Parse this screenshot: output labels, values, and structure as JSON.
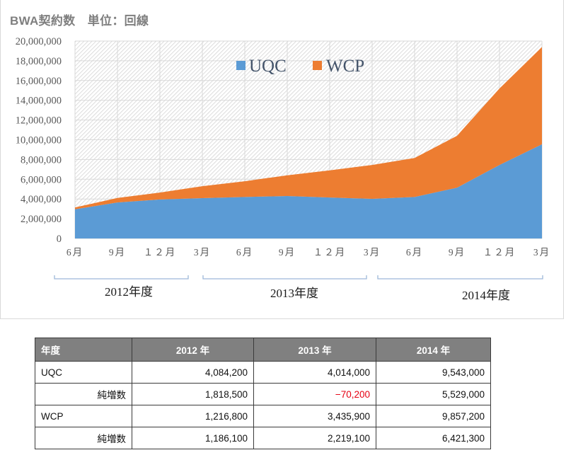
{
  "chart_title": "BWA契約数　単位：回線",
  "colors": {
    "uqc": "#5b9bd5",
    "wcp": "#ed7d31",
    "negative": "#e60012",
    "header_bg": "#808080"
  },
  "legend": [
    {
      "name": "UQC",
      "color": "#5b9bd5"
    },
    {
      "name": "WCP",
      "color": "#ed7d31"
    }
  ],
  "y_ticks": [
    "0",
    "2,000,000",
    "4,000,000",
    "6,000,000",
    "8,000,000",
    "10,000,000",
    "12,000,000",
    "14,000,000",
    "16,000,000",
    "18,000,000",
    "20,000,000"
  ],
  "x_ticks": [
    "6月",
    "9月",
    "１２月",
    "3月",
    "6月",
    "9月",
    "１２月",
    "3月",
    "6月",
    "9月",
    "１２月",
    "3月"
  ],
  "fiscal_years": [
    {
      "label": "2012年度"
    },
    {
      "label": "2013年度"
    },
    {
      "label": "2014年度"
    }
  ],
  "chart_data": {
    "type": "area",
    "stacked": true,
    "title": "BWA契約数　単位：回線",
    "xlabel": "",
    "ylabel": "",
    "ylim": [
      0,
      20000000
    ],
    "grid": true,
    "legend_position": "top-inside",
    "categories": [
      "2012/6",
      "2012/9",
      "2012/12",
      "2013/3",
      "2013/6",
      "2013/9",
      "2013/12",
      "2014/3",
      "2014/6",
      "2014/9",
      "2014/12",
      "2015/3"
    ],
    "category_labels": [
      "6月",
      "9月",
      "１２月",
      "3月",
      "6月",
      "9月",
      "１２月",
      "3月",
      "6月",
      "9月",
      "１２月",
      "3月"
    ],
    "series": [
      {
        "name": "UQC",
        "color": "#5b9bd5",
        "values": [
          2950000,
          3650000,
          3950000,
          4084200,
          4200000,
          4300000,
          4150000,
          4014000,
          4200000,
          5150000,
          7450000,
          9543000
        ]
      },
      {
        "name": "WCP",
        "color": "#ed7d31",
        "values": [
          200000,
          450000,
          700000,
          1216800,
          1600000,
          2100000,
          2750000,
          3435900,
          3950000,
          5250000,
          7750000,
          9857200
        ]
      }
    ],
    "fiscal_year_groups": [
      {
        "label": "2012年度",
        "span": [
          "6月",
          "3月"
        ]
      },
      {
        "label": "2013年度",
        "span": [
          "3月",
          "3月"
        ]
      },
      {
        "label": "2014年度",
        "span": [
          "3月",
          "3月"
        ]
      }
    ]
  },
  "table": {
    "headers": [
      "年度",
      "2012 年",
      "2013 年",
      "2014 年"
    ],
    "rows": [
      {
        "label": "UQC",
        "indent": false,
        "values": [
          "4,084,200",
          "4,014,000",
          "9,543,000"
        ]
      },
      {
        "label": "純増数",
        "indent": true,
        "values": [
          "1,818,500",
          "−70,200",
          "5,529,000"
        ]
      },
      {
        "label": "WCP",
        "indent": false,
        "values": [
          "1,216,800",
          "3,435,900",
          "9,857,200"
        ]
      },
      {
        "label": "純増数",
        "indent": true,
        "values": [
          "1,186,100",
          "2,219,100",
          "6,421,300"
        ]
      }
    ]
  }
}
